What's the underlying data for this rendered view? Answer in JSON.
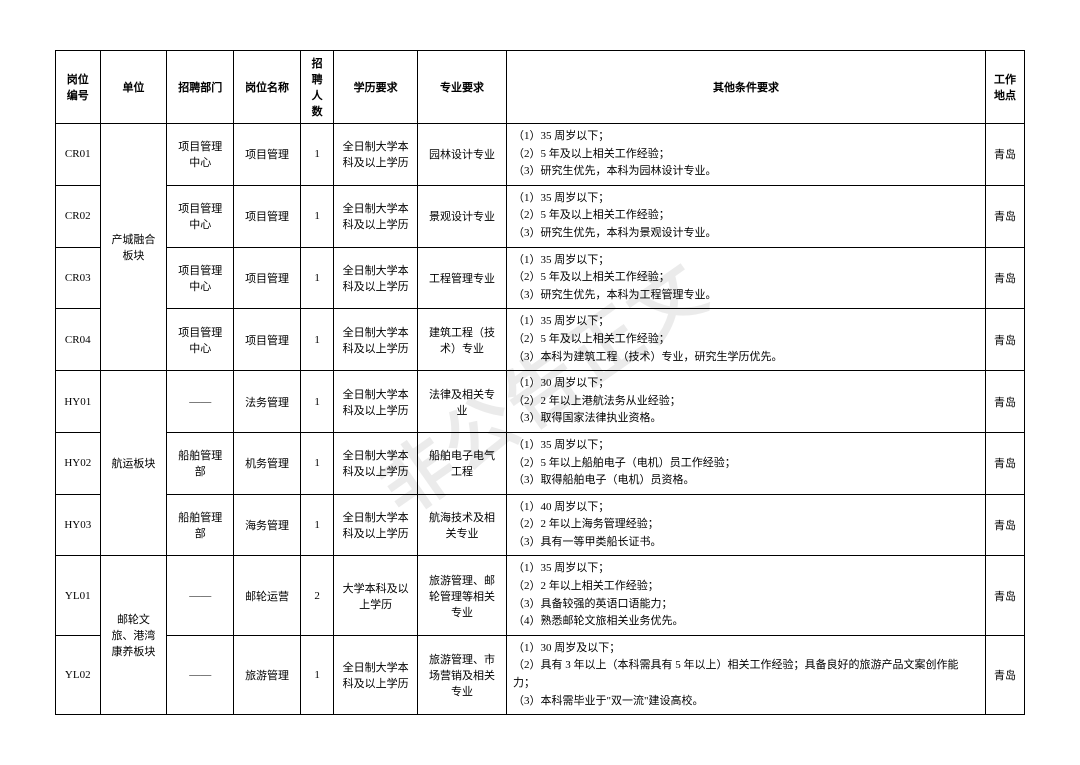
{
  "headers": {
    "code": "岗位编号",
    "unit": "单位",
    "dept": "招聘部门",
    "position": "岗位名称",
    "count": "招聘人数",
    "edu": "学历要求",
    "major": "专业要求",
    "other": "其他条件要求",
    "location": "工作地点"
  },
  "groups": [
    {
      "unit": "产城融合板块",
      "rows": [
        {
          "code": "CR01",
          "dept": "项目管理中心",
          "position": "项目管理",
          "count": "1",
          "edu": "全日制大学本科及以上学历",
          "major": "园林设计专业",
          "other": "（1）35 周岁以下；\n（2）5 年及以上相关工作经验；\n（3）研究生优先，本科为园林设计专业。",
          "location": "青岛"
        },
        {
          "code": "CR02",
          "dept": "项目管理中心",
          "position": "项目管理",
          "count": "1",
          "edu": "全日制大学本科及以上学历",
          "major": "景观设计专业",
          "other": "（1）35 周岁以下；\n（2）5 年及以上相关工作经验；\n（3）研究生优先，本科为景观设计专业。",
          "location": "青岛"
        },
        {
          "code": "CR03",
          "dept": "项目管理中心",
          "position": "项目管理",
          "count": "1",
          "edu": "全日制大学本科及以上学历",
          "major": "工程管理专业",
          "other": "（1）35 周岁以下；\n（2）5 年及以上相关工作经验；\n（3）研究生优先，本科为工程管理专业。",
          "location": "青岛"
        },
        {
          "code": "CR04",
          "dept": "项目管理中心",
          "position": "项目管理",
          "count": "1",
          "edu": "全日制大学本科及以上学历",
          "major": "建筑工程（技术）专业",
          "other": "（1）35 周岁以下；\n（2）5 年及以上相关工作经验；\n（3）本科为建筑工程（技术）专业，研究生学历优先。",
          "location": "青岛"
        }
      ]
    },
    {
      "unit": "航运板块",
      "rows": [
        {
          "code": "HY01",
          "dept": "——",
          "position": "法务管理",
          "count": "1",
          "edu": "全日制大学本科及以上学历",
          "major": "法律及相关专业",
          "other": "（1）30 周岁以下；\n（2）2 年以上港航法务从业经验；\n（3）取得国家法律执业资格。",
          "location": "青岛"
        },
        {
          "code": "HY02",
          "dept": "船舶管理部",
          "position": "机务管理",
          "count": "1",
          "edu": "全日制大学本科及以上学历",
          "major": "船舶电子电气工程",
          "other": "（1）35 周岁以下；\n（2）5 年以上船舶电子（电机）员工作经验；\n（3）取得船舶电子（电机）员资格。",
          "location": "青岛"
        },
        {
          "code": "HY03",
          "dept": "船舶管理部",
          "position": "海务管理",
          "count": "1",
          "edu": "全日制大学本科及以上学历",
          "major": "航海技术及相关专业",
          "other": "（1）40 周岁以下；\n（2）2 年以上海务管理经验；\n（3）具有一等甲类船长证书。",
          "location": "青岛"
        }
      ]
    },
    {
      "unit": "邮轮文旅、港湾康养板块",
      "rows": [
        {
          "code": "YL01",
          "dept": "——",
          "position": "邮轮运营",
          "count": "2",
          "edu": "大学本科及以上学历",
          "major": "旅游管理、邮轮管理等相关专业",
          "other": "（1）35 周岁以下；\n（2）2 年以上相关工作经验；\n（3）具备较强的英语口语能力；\n（4）熟悉邮轮文旅相关业务优先。",
          "location": "青岛"
        },
        {
          "code": "YL02",
          "dept": "——",
          "position": "旅游管理",
          "count": "1",
          "edu": "全日制大学本科及以上学历",
          "major": "旅游管理、市场营销及相关专业",
          "other": "（1）30 周岁及以下；\n（2）具有 3 年以上（本科需具有 5 年以上）相关工作经验；具备良好的旅游产品文案创作能力；\n（3）本科需毕业于\"双一流\"建设高校。",
          "location": "青岛"
        }
      ]
    }
  ]
}
